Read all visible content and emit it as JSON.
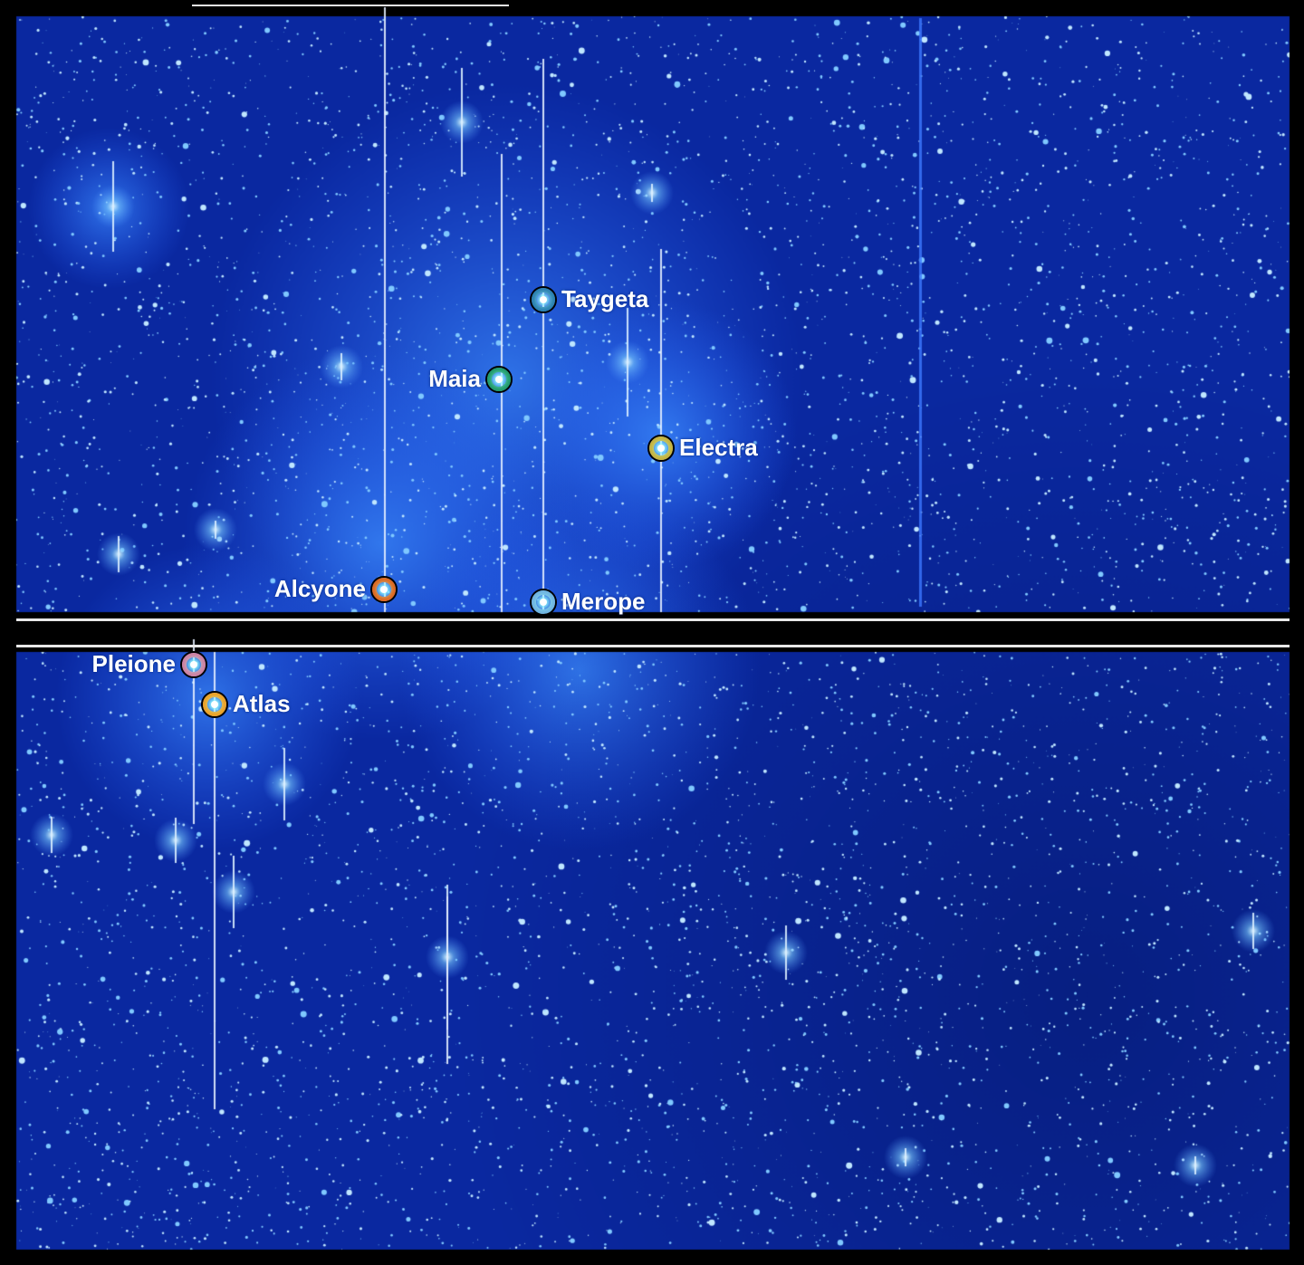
{
  "stars": [
    {
      "name": "Taygeta",
      "ring_color": "#2a7fb0",
      "label_side": "right"
    },
    {
      "name": "Maia",
      "ring_color": "#1f9a6a",
      "label_side": "left"
    },
    {
      "name": "Electra",
      "ring_color": "#c9b23a",
      "label_side": "right"
    },
    {
      "name": "Alcyone",
      "ring_color": "#e0661a",
      "label_side": "left"
    },
    {
      "name": "Merope",
      "ring_color": "#6fb3e0",
      "label_side": "right"
    },
    {
      "name": "Pleione",
      "ring_color": "#d07fa0",
      "label_side": "left"
    },
    {
      "name": "Atlas",
      "ring_color": "#f0a020",
      "label_side": "right"
    }
  ],
  "colors": {
    "sky": "#0a2fb0",
    "nebula": "#2f7fff",
    "background": "#000000"
  }
}
